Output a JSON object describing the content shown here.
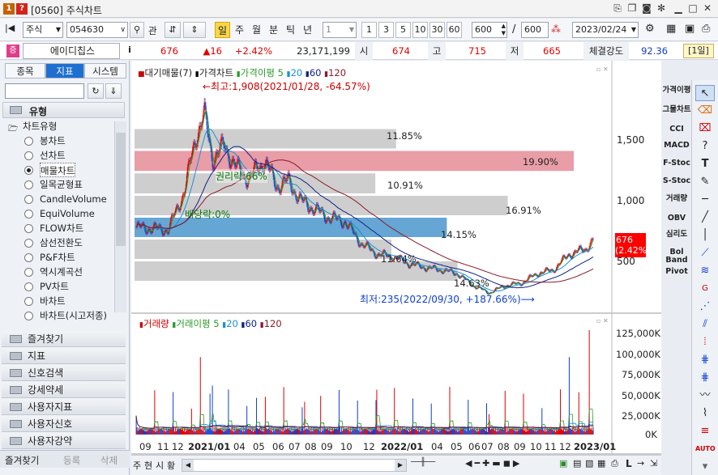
{
  "window": {
    "num_label": "1",
    "help_label": "?",
    "title": "[0560] 주식차트"
  },
  "toolbar": {
    "market": "주식",
    "code": "054630",
    "search_label": "관",
    "periods": [
      "일",
      "주",
      "월",
      "분",
      "틱",
      "년"
    ],
    "count_sel": "1",
    "intervals": [
      "1",
      "3",
      "5",
      "10",
      "30",
      "60"
    ],
    "bar_count": "600",
    "bar_total": "600",
    "slash": "/",
    "date": "2023/02/24"
  },
  "pricebar": {
    "badge": "증",
    "name": "에이디칩스",
    "info": "i",
    "price": "676",
    "change": "▲16",
    "pct": "+2.42%",
    "volume": "23,171,199",
    "open_label": "시",
    "open": "674",
    "high_label": "고",
    "high": "715",
    "low_label": "저",
    "low": "665",
    "strength_label": "체결강도",
    "strength": "92.36",
    "period_badge": "[1일]"
  },
  "left": {
    "tabs": [
      "종목",
      "지표",
      "시스템"
    ],
    "section": "유형",
    "tree_root": "차트유형",
    "types": [
      "봉차트",
      "선차트",
      "매물차트",
      "일목균형표",
      "CandleVolume",
      "EquiVolume",
      "FLOW차트",
      "삼선전환도",
      "P&F차트",
      "역시계곡선",
      "PV차트",
      "바차트",
      "바차트(시고저종)"
    ],
    "selected": "매물차트",
    "folders": [
      "즐겨찾기",
      "지표",
      "신호검색",
      "강세약세",
      "사용자지표",
      "사용자신호",
      "사용자강약"
    ],
    "bottom_tabs": [
      "즐겨찾기",
      "등록",
      "삭제"
    ]
  },
  "chart": {
    "legend_main": [
      "대기매물(7)",
      "가격차트",
      "가격이평 5",
      "20",
      "60",
      "120"
    ],
    "legend_vol": [
      "거래량",
      "거래이평 5",
      "20",
      "60",
      "120"
    ],
    "high_note": "←최고:1,908(2021/01/28, -64.57%)",
    "low_note": "최저:235(2022/09/30, +187.66%)⟶",
    "ex_rights": "권리락:66%",
    "ex_div": "배당락:0%",
    "profile_pct": [
      "11.85%",
      "19.90%",
      "10.91%",
      "16.91%",
      "14.15%",
      "11.64%",
      "14.63%"
    ],
    "price_ticks": [
      "1,500",
      "1,000",
      "500"
    ],
    "cur_price": "676",
    "cur_pct": "(2.42%)",
    "vol_ticks": [
      "125,000K",
      "100,000K",
      "75,000K",
      "50,000K",
      "25,000K",
      "0K"
    ],
    "x_labels": [
      "09",
      "11",
      "12",
      "2021/01",
      "04",
      "05",
      "06",
      "07",
      "08",
      "09",
      "10",
      "12",
      "2022/01",
      "04",
      "05",
      "06",
      "07",
      "08",
      "09",
      "10",
      "11",
      "12",
      "2023/01"
    ],
    "bottom_btns": [
      "주",
      "현",
      "시",
      "황"
    ]
  },
  "right_labels": [
    "가격이평",
    "그물차트",
    "CCI",
    "MACD",
    "F-Stoc",
    "S-Stoc",
    "거래량",
    "OBV",
    "심리도",
    "Bol Band",
    "Pivot"
  ],
  "colors": {
    "accent": "#1e6fd0",
    "up": "#e00000",
    "down": "#1040d0",
    "profile_gray": "#c6c6c6",
    "profile_max": "#e48c98",
    "profile_cur": "#4a97cc"
  },
  "chart_data": {
    "type": "candlestick+volume-profile",
    "series": [
      {
        "name": "가격이평 5"
      },
      {
        "name": "20"
      },
      {
        "name": "60"
      },
      {
        "name": "120"
      }
    ],
    "price_range": [
      200,
      1950
    ],
    "high": 1908,
    "low": 235,
    "last": 676,
    "profile": [
      11.85,
      19.9,
      10.91,
      16.91,
      14.15,
      11.64,
      14.63
    ]
  }
}
